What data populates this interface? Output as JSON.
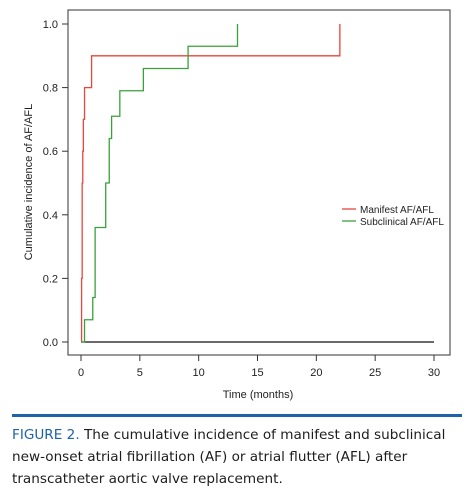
{
  "chart_data": {
    "type": "line",
    "step": true,
    "xlabel": "Time (months)",
    "ylabel": "Cumulative incidence of AF/AFL",
    "xlim": [
      0,
      30
    ],
    "ylim": [
      0,
      1.0
    ],
    "x_ticks": [
      0,
      5,
      10,
      15,
      20,
      25,
      30
    ],
    "y_ticks": [
      0.0,
      0.2,
      0.4,
      0.6,
      0.8,
      1.0
    ],
    "grid": false,
    "legend_position": "right",
    "series": [
      {
        "name": "Manifest AF/AFL",
        "color": "#e8453c",
        "x": [
          0,
          0.05,
          0.1,
          0.15,
          0.2,
          0.3,
          0.9,
          22
        ],
        "y": [
          0,
          0.2,
          0.5,
          0.6,
          0.7,
          0.8,
          0.9,
          1.0
        ]
      },
      {
        "name": "Subclinical AF/AFL",
        "color": "#3aa13a",
        "x": [
          0,
          0.3,
          1.0,
          1.2,
          2.1,
          2.4,
          2.6,
          3.3,
          5.3,
          9.1,
          13.3
        ],
        "y": [
          0,
          0.07,
          0.14,
          0.36,
          0.5,
          0.64,
          0.71,
          0.79,
          0.86,
          0.93,
          1.0
        ]
      }
    ]
  },
  "caption": {
    "label": "FIGURE 2.",
    "text": " The cumulative incidence of manifest and subclinical new-onset atrial fibrillation (AF) or atrial flutter (AFL) after transcatheter aortic valve replacement."
  }
}
